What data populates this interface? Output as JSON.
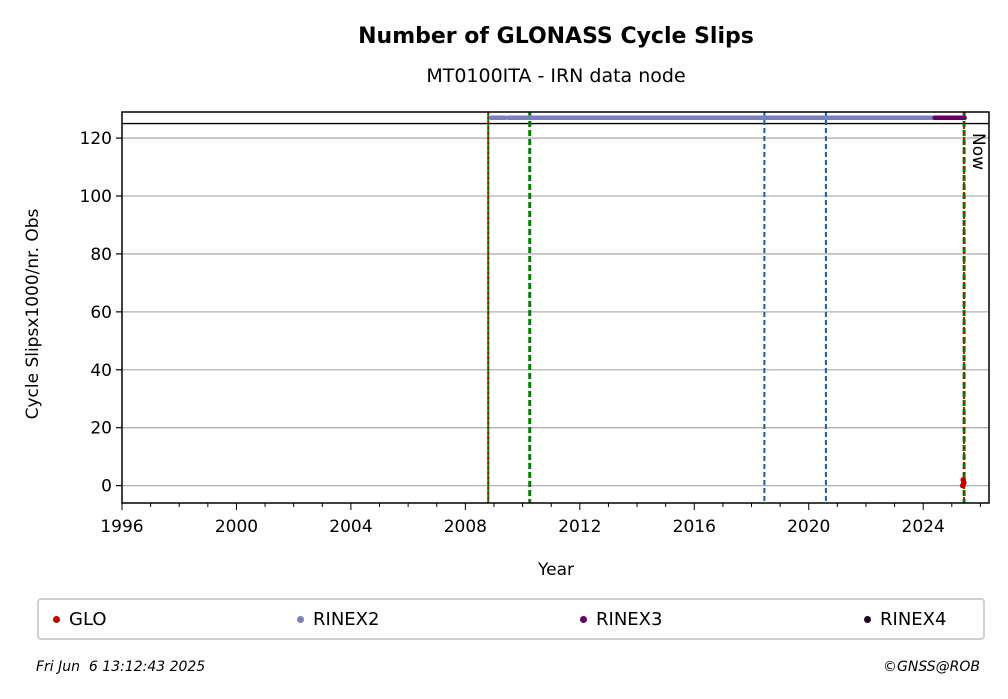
{
  "chart_data": {
    "type": "scatter",
    "title": "Number of GLONASS Cycle Slips",
    "subtitle": "MT0100ITA - IRN data node",
    "xlabel": "Year",
    "ylabel": "Cycle Slipsx1000/nr. Obs",
    "xlim": [
      1996,
      2026.3
    ],
    "ylim": [
      -6,
      129
    ],
    "xticks": [
      1996,
      2000,
      2004,
      2008,
      2012,
      2016,
      2020,
      2024
    ],
    "yticks": [
      0,
      20,
      40,
      60,
      80,
      100,
      120
    ],
    "grid": "horizontal",
    "threshold_line": 125,
    "series": [
      {
        "name": "GLO",
        "color": "#c00000",
        "x": [
          2025.38,
          2025.4,
          2025.42
        ],
        "y": [
          0,
          2,
          1
        ]
      },
      {
        "name": "RINEX2",
        "color": "#7b7fbf",
        "segments": [
          [
            2008.9,
            2009.4
          ],
          [
            2009.5,
            2024.4
          ]
        ],
        "y": 127
      },
      {
        "name": "RINEX3",
        "color": "#660066",
        "segments": [
          [
            2024.4,
            2025.45
          ]
        ],
        "y": 127
      },
      {
        "name": "RINEX4",
        "color": "#220022",
        "segments": [],
        "y": 127
      }
    ],
    "vlines": [
      {
        "x": 2008.8,
        "color": "#008000",
        "style": "solid"
      },
      {
        "x": 2008.8,
        "color": "#cc0000",
        "style": "dotted"
      },
      {
        "x": 2010.25,
        "color": "#008000",
        "style": "dashed"
      },
      {
        "x": 2018.45,
        "color": "#1060b0",
        "style": "dashed"
      },
      {
        "x": 2020.6,
        "color": "#1060b0",
        "style": "dashed"
      },
      {
        "x": 2025.43,
        "color": "#008000",
        "style": "dashed"
      },
      {
        "x": 2025.43,
        "color": "#cc0000",
        "style": "dotted"
      }
    ],
    "annotation": {
      "text": "Now",
      "x": 2025.43
    },
    "legend_placement": "bottom"
  },
  "footer": {
    "timestamp": "Fri Jun  6 13:12:43 2025",
    "copyright": "©GNSS@ROB"
  }
}
